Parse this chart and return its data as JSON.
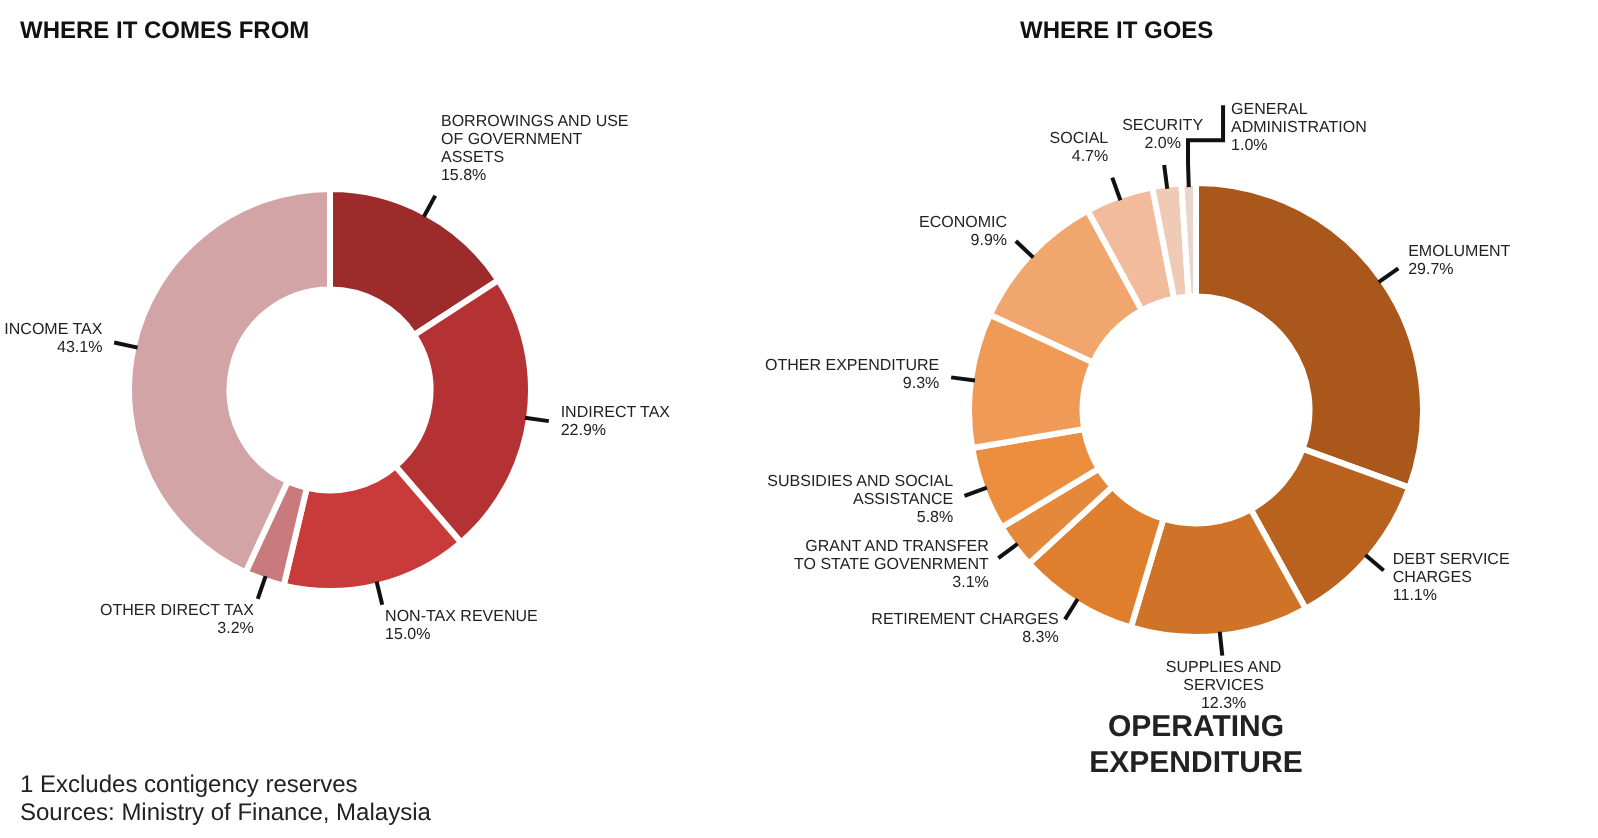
{
  "chart_data": [
    {
      "type": "donut",
      "title": "WHERE IT COMES FROM",
      "categories": [
        "BORROWINGS AND USE OF GOVERNMENT ASSETS",
        "INDIRECT TAX",
        "NON-TAX REVENUE",
        "OTHER DIRECT TAX",
        "INCOME TAX"
      ],
      "values": [
        15.8,
        22.9,
        15.0,
        3.2,
        43.1
      ],
      "value_labels": [
        "15.8%",
        "22.9%",
        "15.0%",
        "3.2%",
        "43.1%"
      ],
      "colors": [
        "#9e2b2c",
        "#b53234",
        "#c93a3b",
        "#c97a7c",
        "#d3a4a6"
      ],
      "legend": false,
      "annotations": [
        "1 Excludes contigency reserves",
        "Sources: Ministry of Finance, Malaysia"
      ]
    },
    {
      "type": "donut",
      "title": "WHERE IT GOES",
      "subtitle": "OPERATING EXPENDITURE",
      "categories": [
        "EMOLUMENT",
        "DEBT SERVICE CHARGES",
        "SUPPLIES AND SERVICES",
        "RETIREMENT CHARGES",
        "GRANT AND TRANSFER TO STATE GOVENRMENT",
        "SUBSIDIES AND SOCIAL ASSISTANCE",
        "OTHER EXPENDITURE",
        "ECONOMIC",
        "SOCIAL",
        "SECURITY",
        "GENERAL ADMINISTRATION"
      ],
      "values": [
        29.7,
        11.1,
        12.3,
        8.3,
        3.1,
        5.8,
        9.3,
        9.9,
        4.7,
        2.0,
        1.0
      ],
      "value_labels": [
        "29.7%",
        "11.1%",
        "12.3%",
        "8.3%",
        "3.1%",
        "5.8%",
        "9.3%",
        "9.9%",
        "4.7%",
        "2.0%",
        "1.0%"
      ],
      "colors": [
        "#a9571b",
        "#b9621f",
        "#cf7328",
        "#df7f2d",
        "#e6883a",
        "#ec8e3e",
        "#ef9a56",
        "#f0a66c",
        "#f1bb9c",
        "#efcbb6",
        "#ead5cb"
      ],
      "legend": false
    }
  ]
}
